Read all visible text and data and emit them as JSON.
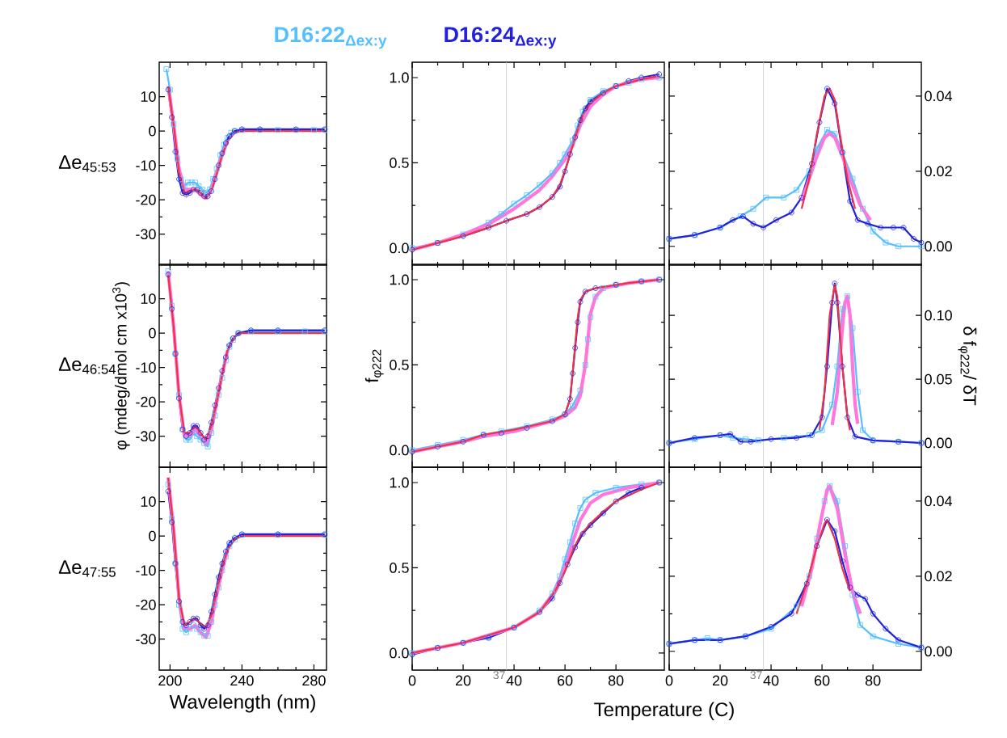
{
  "chart_data": [
    {
      "type": "line",
      "xlim": [
        194,
        287
      ],
      "ylim": [
        -39,
        20
      ],
      "xticks": [
        200,
        240,
        280
      ],
      "yticks": [
        -30,
        -20,
        -10,
        0,
        10
      ],
      "tick_labels": "y",
      "annotations": [
        "Δe$_{45:53}$"
      ],
      "series": [
        {
          "name": "D16:22$_{Δex:y}$",
          "color": "#55bfff",
          "marker": "square",
          "x": [
            198,
            200,
            202,
            204,
            206,
            208,
            210,
            212,
            214,
            216,
            218,
            220,
            222,
            224,
            226,
            228,
            230,
            232,
            234,
            236,
            240,
            250,
            260,
            270,
            280,
            286
          ],
          "values": [
            18,
            12,
            2,
            -8,
            -14,
            -16,
            -15,
            -15,
            -15,
            -16,
            -17,
            -18,
            -17,
            -14,
            -11,
            -7,
            -4,
            -2,
            -0.5,
            0,
            0.3,
            0.3,
            0.3,
            0.3,
            0.3,
            0.3
          ]
        },
        {
          "name": "D16:24$_{Δex:y}$",
          "color": "#2222dd",
          "marker": "circle",
          "x": [
            199,
            201,
            203,
            205,
            207,
            209,
            211,
            213,
            215,
            217,
            219,
            221,
            223,
            225,
            227,
            229,
            231,
            233,
            236,
            240,
            250,
            270,
            286
          ],
          "values": [
            12,
            4,
            -6,
            -14,
            -18,
            -18.5,
            -18,
            -17,
            -17,
            -18,
            -19,
            -19,
            -17.5,
            -14,
            -10,
            -6.5,
            -3.5,
            -1.5,
            0,
            0.5,
            0.5,
            0.5,
            0.5
          ]
        },
        {
          "color": "#ff77dd",
          "marker": "none",
          "x": [
            199,
            202,
            205,
            208,
            211,
            214,
            217,
            220,
            223,
            226,
            229,
            232
          ],
          "values": [
            13,
            2,
            -11,
            -17,
            -17,
            -17,
            -18.5,
            -19.5,
            -17,
            -12,
            -7,
            -3
          ]
        },
        {
          "color": "#ee3344",
          "marker": "none",
          "x": [
            199,
            202,
            205,
            208,
            211,
            214,
            217,
            220,
            223,
            226,
            229,
            232,
            236,
            240,
            286
          ],
          "values": [
            13,
            2,
            -12,
            -18,
            -17.5,
            -17,
            -18,
            -19.5,
            -17.5,
            -12.5,
            -7,
            -3,
            -0.5,
            0,
            0
          ]
        }
      ]
    },
    {
      "type": "line",
      "xlim": [
        0,
        99
      ],
      "ylim": [
        -0.1,
        1.09
      ],
      "xticks": [
        0,
        20,
        40,
        60,
        80
      ],
      "yticks": [
        {
          "value": 0,
          "label": "0.0"
        },
        {
          "value": 0.5,
          "label": "0.5"
        },
        {
          "value": 1,
          "label": "1.0"
        }
      ],
      "tick_labels": "y",
      "ref_lines": [
        {
          "axis": "x",
          "value": 37,
          "color": "#c8c8c8"
        }
      ],
      "series": [
        {
          "color": "#55bfff",
          "marker": "square",
          "x": [
            0,
            10,
            20,
            30,
            35,
            40,
            45,
            50,
            55,
            58,
            60,
            63,
            65,
            67,
            70,
            75,
            80,
            85,
            90,
            97
          ],
          "values": [
            0,
            0.03,
            0.08,
            0.15,
            0.2,
            0.26,
            0.31,
            0.37,
            0.44,
            0.5,
            0.55,
            0.63,
            0.72,
            0.8,
            0.87,
            0.92,
            0.95,
            0.97,
            0.99,
            1.0
          ]
        },
        {
          "color": "#2222dd",
          "marker": "circle",
          "x": [
            0,
            10,
            20,
            30,
            37,
            45,
            50,
            55,
            58,
            60,
            62,
            64,
            66,
            68,
            70,
            75,
            80,
            85,
            90,
            97
          ],
          "values": [
            -0.01,
            0.03,
            0.07,
            0.12,
            0.16,
            0.2,
            0.24,
            0.3,
            0.36,
            0.45,
            0.55,
            0.65,
            0.75,
            0.82,
            0.86,
            0.91,
            0.95,
            0.98,
            1.0,
            1.02
          ]
        },
        {
          "color": "#ff77dd",
          "marker": "none",
          "x": [
            0,
            10,
            20,
            30,
            40,
            50,
            55,
            60,
            63,
            66,
            70,
            75,
            80,
            90,
            97
          ],
          "values": [
            -0.01,
            0.03,
            0.08,
            0.14,
            0.23,
            0.34,
            0.42,
            0.52,
            0.6,
            0.72,
            0.83,
            0.9,
            0.95,
            0.99,
            1.0
          ]
        },
        {
          "color": "#ee3344",
          "marker": "none",
          "x": [
            0,
            10,
            20,
            30,
            37,
            45,
            50,
            55,
            58,
            61,
            64,
            67,
            70,
            75,
            80,
            90,
            97
          ],
          "values": [
            -0.01,
            0.03,
            0.07,
            0.12,
            0.16,
            0.2,
            0.24,
            0.3,
            0.37,
            0.5,
            0.65,
            0.78,
            0.85,
            0.91,
            0.95,
            0.99,
            1.01
          ]
        }
      ]
    },
    {
      "type": "line",
      "xlim": [
        0,
        99
      ],
      "ylim": [
        -0.005,
        0.049
      ],
      "xticks": [
        0,
        20,
        40,
        60,
        80
      ],
      "yticks": [
        {
          "value": 0,
          "label": "0.00"
        },
        {
          "value": 0.02,
          "label": "0.02"
        },
        {
          "value": 0.04,
          "label": "0.04"
        }
      ],
      "tick_labels": "y",
      "ref_lines": [
        {
          "axis": "x",
          "value": 37,
          "color": "#c8c8c8"
        }
      ],
      "series": [
        {
          "color": "#55bfff",
          "marker": "square",
          "x": [
            0,
            10,
            20,
            28,
            33,
            38,
            45,
            50,
            55,
            58,
            62,
            65,
            68,
            72,
            76,
            80,
            85,
            90,
            99
          ],
          "values": [
            0.002,
            0.003,
            0.005,
            0.008,
            0.01,
            0.013,
            0.013,
            0.015,
            0.02,
            0.026,
            0.031,
            0.03,
            0.025,
            0.018,
            0.01,
            0.004,
            0.001,
            0,
            0
          ]
        },
        {
          "color": "#2222dd",
          "marker": "circle",
          "x": [
            0,
            10,
            20,
            25,
            29,
            33,
            37,
            42,
            48,
            52,
            56,
            59,
            62,
            65,
            68,
            71,
            74,
            78,
            83,
            88,
            92,
            96,
            99
          ],
          "values": [
            0.002,
            0.003,
            0.005,
            0.007,
            0.008,
            0.006,
            0.005,
            0.007,
            0.009,
            0.013,
            0.022,
            0.033,
            0.042,
            0.038,
            0.025,
            0.012,
            0.007,
            0.006,
            0.005,
            0.005,
            0.005,
            0.002,
            0.001
          ]
        },
        {
          "color": "#ff77dd",
          "marker": "none",
          "x": [
            52,
            55,
            58,
            61,
            63,
            65,
            68,
            71,
            75,
            79
          ],
          "values": [
            0.012,
            0.018,
            0.024,
            0.029,
            0.03,
            0.029,
            0.024,
            0.018,
            0.011,
            0.007
          ]
        },
        {
          "color": "#ee3344",
          "marker": "none",
          "x": [
            52,
            55,
            58,
            61,
            63,
            65,
            67,
            70,
            73
          ],
          "values": [
            0.01,
            0.018,
            0.03,
            0.04,
            0.042,
            0.039,
            0.03,
            0.018,
            0.01
          ]
        }
      ]
    },
    {
      "type": "line",
      "xlim": [
        194,
        287
      ],
      "ylim": [
        -39,
        20
      ],
      "xticks": [
        200,
        240,
        280
      ],
      "yticks": [
        -30,
        -20,
        -10,
        0,
        10
      ],
      "tick_labels": "y",
      "ylabel": "φ  (mdeg/dmol cm x10$^{3}$)",
      "annotations": [
        "Δe$_{46:54}$"
      ],
      "series": [
        {
          "color": "#55bfff",
          "marker": "square",
          "x": [
            199,
            201,
            203,
            205,
            207,
            209,
            211,
            213,
            215,
            217,
            219,
            221,
            223,
            225,
            227,
            229,
            231,
            233,
            235,
            238,
            245,
            260,
            275,
            286
          ],
          "values": [
            18,
            8,
            -6,
            -18,
            -28,
            -31,
            -31,
            -29,
            -30,
            -31,
            -32,
            -33,
            -29,
            -24,
            -18,
            -13,
            -8,
            -4,
            -2,
            0,
            0.5,
            0.5,
            0.5,
            0.5
          ]
        },
        {
          "color": "#2222dd",
          "marker": "circle",
          "x": [
            199,
            201,
            203,
            205,
            207,
            209,
            211,
            213,
            215,
            217,
            219,
            221,
            223,
            225,
            227,
            229,
            231,
            233,
            235,
            238,
            245,
            260,
            286
          ],
          "values": [
            17,
            7,
            -6,
            -19,
            -28,
            -30,
            -29,
            -27,
            -27,
            -29,
            -31,
            -30,
            -26,
            -21,
            -16,
            -11,
            -7,
            -3.5,
            -1.5,
            0,
            0.8,
            0.8,
            0.8
          ]
        },
        {
          "color": "#ff77dd",
          "marker": "none",
          "x": [
            199,
            202,
            205,
            208,
            211,
            214,
            217,
            220,
            223,
            226,
            229,
            232
          ],
          "values": [
            18,
            2,
            -18,
            -30,
            -30,
            -28,
            -30,
            -32.5,
            -28,
            -20,
            -12,
            -5
          ]
        },
        {
          "color": "#ee3344",
          "marker": "none",
          "x": [
            199,
            202,
            205,
            208,
            211,
            214,
            217,
            220,
            223,
            226,
            229,
            232,
            236,
            240,
            286
          ],
          "values": [
            17,
            2,
            -18,
            -29,
            -29,
            -27,
            -29,
            -31,
            -27,
            -20,
            -12,
            -5,
            -1,
            0,
            0
          ]
        }
      ]
    },
    {
      "type": "line",
      "xlim": [
        0,
        99
      ],
      "ylim": [
        -0.1,
        1.09
      ],
      "xticks": [
        0,
        20,
        40,
        60,
        80
      ],
      "yticks": [
        {
          "value": 0,
          "label": "0.0"
        },
        {
          "value": 0.5,
          "label": "0.5"
        },
        {
          "value": 1,
          "label": "1.0"
        }
      ],
      "tick_labels": "y",
      "ylabel": "f$_{φ222}$",
      "ref_lines": [
        {
          "axis": "x",
          "value": 37,
          "color": "#c8c8c8"
        }
      ],
      "series": [
        {
          "color": "#55bfff",
          "marker": "square",
          "x": [
            0,
            10,
            20,
            28,
            35,
            45,
            55,
            60,
            63,
            66,
            68,
            69,
            70,
            72,
            75,
            80,
            90,
            97
          ],
          "values": [
            0,
            0.03,
            0.06,
            0.09,
            0.11,
            0.14,
            0.18,
            0.21,
            0.26,
            0.35,
            0.5,
            0.65,
            0.78,
            0.9,
            0.95,
            0.97,
            0.99,
            1.0
          ]
        },
        {
          "color": "#2222dd",
          "marker": "circle",
          "x": [
            0,
            10,
            20,
            28,
            35,
            45,
            55,
            60,
            62,
            63,
            64,
            65,
            66,
            68,
            72,
            80,
            90,
            97
          ],
          "values": [
            -0.01,
            0.02,
            0.05,
            0.09,
            0.1,
            0.13,
            0.17,
            0.21,
            0.3,
            0.45,
            0.6,
            0.75,
            0.87,
            0.93,
            0.95,
            0.97,
            0.99,
            1.0
          ]
        },
        {
          "color": "#ff77dd",
          "marker": "none",
          "x": [
            0,
            20,
            28,
            40,
            55,
            60,
            64,
            66,
            68,
            69,
            70,
            72,
            75,
            85,
            97
          ],
          "values": [
            -0.01,
            0.05,
            0.08,
            0.11,
            0.17,
            0.2,
            0.25,
            0.32,
            0.5,
            0.65,
            0.8,
            0.9,
            0.95,
            0.98,
            1.0
          ]
        },
        {
          "color": "#ee3344",
          "marker": "none",
          "x": [
            0,
            20,
            28,
            40,
            55,
            60,
            62,
            63,
            64,
            65,
            66,
            68,
            72,
            85,
            97
          ],
          "values": [
            -0.01,
            0.05,
            0.09,
            0.12,
            0.17,
            0.21,
            0.3,
            0.45,
            0.62,
            0.78,
            0.88,
            0.93,
            0.95,
            0.98,
            1.0
          ]
        }
      ]
    },
    {
      "type": "line",
      "xlim": [
        0,
        99
      ],
      "ylim": [
        -0.019,
        0.14
      ],
      "xticks": [
        0,
        20,
        40,
        60,
        80
      ],
      "yticks": [
        {
          "value": 0,
          "label": "0.00"
        },
        {
          "value": 0.05,
          "label": "0.05"
        },
        {
          "value": 0.1,
          "label": "0.10"
        }
      ],
      "tick_labels": "y",
      "ylabel": "δ f$_{φ222}$/ δT",
      "ref_lines": [
        {
          "axis": "x",
          "value": 37,
          "color": "#c8c8c8"
        }
      ],
      "series": [
        {
          "color": "#55bfff",
          "marker": "square",
          "x": [
            0,
            10,
            20,
            25,
            30,
            35,
            45,
            55,
            60,
            64,
            66,
            68,
            70,
            72,
            74,
            76,
            80,
            90,
            99
          ],
          "values": [
            0,
            0.003,
            0.006,
            0.004,
            0.003,
            0.002,
            0.004,
            0.006,
            0.01,
            0.03,
            0.06,
            0.105,
            0.115,
            0.09,
            0.04,
            0.01,
            0.002,
            0.001,
            0
          ]
        },
        {
          "color": "#2222dd",
          "marker": "circle",
          "x": [
            0,
            10,
            20,
            24,
            28,
            32,
            40,
            50,
            56,
            60,
            62,
            64,
            65,
            66,
            68,
            70,
            73,
            80,
            90,
            99
          ],
          "values": [
            0,
            0.004,
            0.006,
            0.007,
            0.001,
            0.001,
            0.003,
            0.004,
            0.006,
            0.02,
            0.06,
            0.11,
            0.125,
            0.11,
            0.06,
            0.02,
            0.005,
            0.002,
            0.001,
            0
          ]
        },
        {
          "color": "#ff77dd",
          "marker": "none",
          "x": [
            64,
            66,
            68,
            69,
            70,
            71,
            72,
            73,
            74
          ],
          "values": [
            0.014,
            0.04,
            0.09,
            0.11,
            0.115,
            0.1,
            0.06,
            0.03,
            0.015
          ]
        },
        {
          "color": "#ee3344",
          "marker": "none",
          "x": [
            59,
            61,
            63,
            65,
            66,
            68,
            70,
            71
          ],
          "values": [
            0.01,
            0.04,
            0.1,
            0.124,
            0.115,
            0.06,
            0.02,
            0.01
          ]
        }
      ]
    },
    {
      "type": "line",
      "xlim": [
        194,
        287
      ],
      "ylim": [
        -39,
        20
      ],
      "xticks": [
        200,
        240,
        280
      ],
      "yticks": [
        -30,
        -20,
        -10,
        0,
        10
      ],
      "xlabel": "Wavelength (nm)",
      "annotations": [
        "Δe$_{47:55}$"
      ],
      "series": [
        {
          "color": "#55bfff",
          "marker": "square",
          "x": [
            199,
            201,
            203,
            205,
            207,
            209,
            211,
            213,
            215,
            217,
            219,
            221,
            223,
            225,
            227,
            229,
            231,
            233,
            236,
            240,
            260,
            286
          ],
          "values": [
            15,
            5,
            -8,
            -20,
            -27,
            -28,
            -27,
            -26,
            -27,
            -28,
            -29,
            -29,
            -25,
            -20,
            -15,
            -10,
            -6,
            -3,
            -1,
            0.3,
            0.3,
            0.3
          ]
        },
        {
          "color": "#2222dd",
          "marker": "circle",
          "x": [
            199,
            201,
            203,
            205,
            207,
            209,
            211,
            213,
            215,
            217,
            219,
            221,
            223,
            225,
            227,
            229,
            231,
            233,
            236,
            240,
            260,
            286
          ],
          "values": [
            13,
            4,
            -8,
            -19,
            -25,
            -26,
            -25,
            -24,
            -24,
            -26,
            -27,
            -26,
            -22,
            -17,
            -12,
            -8,
            -4.5,
            -2,
            -0.5,
            0.5,
            0.5,
            0.5
          ]
        },
        {
          "color": "#ff77dd",
          "marker": "none",
          "x": [
            199,
            202,
            205,
            208,
            211,
            214,
            217,
            220,
            223,
            226,
            229,
            232
          ],
          "values": [
            17,
            2,
            -18,
            -27,
            -27,
            -26,
            -28,
            -29.5,
            -25,
            -17,
            -10,
            -4
          ]
        },
        {
          "color": "#ee3344",
          "marker": "none",
          "x": [
            199,
            202,
            205,
            208,
            211,
            214,
            217,
            220,
            223,
            226,
            229,
            232,
            236,
            240,
            286
          ],
          "values": [
            17,
            2,
            -18,
            -26,
            -25,
            -24,
            -25.5,
            -26.5,
            -23,
            -16,
            -9,
            -4,
            -1,
            0,
            0
          ]
        }
      ]
    },
    {
      "type": "line",
      "xlim": [
        0,
        99
      ],
      "ylim": [
        -0.1,
        1.09
      ],
      "xticks": [
        0,
        20,
        40,
        60,
        80
      ],
      "yticks": [
        {
          "value": 0,
          "label": "0.0"
        },
        {
          "value": 0.5,
          "label": "0.5"
        },
        {
          "value": 1,
          "label": "1.0"
        }
      ],
      "xlabel": "Temperature  (C)",
      "ref_lines": [
        {
          "axis": "x",
          "value": 37,
          "label": "37",
          "color": "#c8c8c8"
        }
      ],
      "series": [
        {
          "color": "#55bfff",
          "marker": "square",
          "x": [
            0,
            10,
            20,
            30,
            40,
            50,
            55,
            58,
            60,
            62,
            64,
            66,
            68,
            72,
            80,
            90,
            97
          ],
          "values": [
            0,
            0.03,
            0.06,
            0.09,
            0.15,
            0.25,
            0.35,
            0.45,
            0.55,
            0.65,
            0.76,
            0.85,
            0.9,
            0.94,
            0.97,
            0.99,
            1.0
          ]
        },
        {
          "color": "#2222dd",
          "marker": "circle",
          "x": [
            0,
            10,
            20,
            30,
            40,
            50,
            55,
            58,
            61,
            64,
            67,
            70,
            75,
            80,
            85,
            90,
            97
          ],
          "values": [
            -0.01,
            0.03,
            0.06,
            0.09,
            0.15,
            0.24,
            0.32,
            0.41,
            0.52,
            0.62,
            0.7,
            0.75,
            0.82,
            0.89,
            0.94,
            0.97,
            1.0
          ]
        },
        {
          "color": "#ff77dd",
          "marker": "none",
          "x": [
            0,
            20,
            40,
            50,
            56,
            60,
            63,
            66,
            70,
            75,
            85,
            97
          ],
          "values": [
            0,
            0.06,
            0.15,
            0.24,
            0.36,
            0.5,
            0.65,
            0.78,
            0.88,
            0.93,
            0.97,
            1.0
          ]
        },
        {
          "color": "#ee3344",
          "marker": "none",
          "x": [
            0,
            20,
            40,
            50,
            56,
            60,
            63,
            66,
            70,
            75,
            80,
            90,
            97
          ],
          "values": [
            0,
            0.06,
            0.15,
            0.24,
            0.36,
            0.48,
            0.6,
            0.69,
            0.76,
            0.83,
            0.89,
            0.96,
            1.0
          ]
        }
      ]
    },
    {
      "type": "line",
      "xlim": [
        0,
        99
      ],
      "ylim": [
        -0.005,
        0.049
      ],
      "xticks": [
        0,
        20,
        40,
        60,
        80
      ],
      "yticks": [
        {
          "value": 0,
          "label": "0.00"
        },
        {
          "value": 0.02,
          "label": "0.02"
        },
        {
          "value": 0.04,
          "label": "0.04"
        }
      ],
      "ref_lines": [
        {
          "axis": "x",
          "value": 37,
          "label": "37",
          "color": "#c8c8c8"
        }
      ],
      "series": [
        {
          "color": "#55bfff",
          "marker": "square",
          "x": [
            0,
            10,
            15,
            20,
            30,
            40,
            50,
            55,
            58,
            61,
            63,
            66,
            69,
            72,
            75,
            80,
            90,
            99
          ],
          "values": [
            0.002,
            0.003,
            0.0035,
            0.003,
            0.004,
            0.006,
            0.012,
            0.02,
            0.03,
            0.04,
            0.044,
            0.04,
            0.028,
            0.015,
            0.007,
            0.004,
            0.002,
            0.001
          ]
        },
        {
          "color": "#2222dd",
          "marker": "circle",
          "x": [
            0,
            10,
            20,
            30,
            40,
            48,
            54,
            58,
            62,
            65,
            68,
            71,
            74,
            77,
            80,
            85,
            90,
            99
          ],
          "values": [
            0.002,
            0.003,
            0.003,
            0.004,
            0.0065,
            0.01,
            0.018,
            0.028,
            0.035,
            0.032,
            0.024,
            0.017,
            0.015,
            0.014,
            0.01,
            0.006,
            0.003,
            0.001
          ]
        },
        {
          "color": "#ff77dd",
          "marker": "none",
          "x": [
            52,
            56,
            59,
            62,
            63,
            66,
            69,
            72,
            75
          ],
          "values": [
            0.012,
            0.022,
            0.033,
            0.043,
            0.044,
            0.038,
            0.026,
            0.016,
            0.01
          ]
        },
        {
          "color": "#ee3344",
          "marker": "none",
          "x": [
            50,
            54,
            58,
            61,
            62,
            65,
            68,
            71
          ],
          "values": [
            0.01,
            0.018,
            0.028,
            0.034,
            0.035,
            0.03,
            0.022,
            0.016
          ]
        }
      ]
    }
  ]
}
